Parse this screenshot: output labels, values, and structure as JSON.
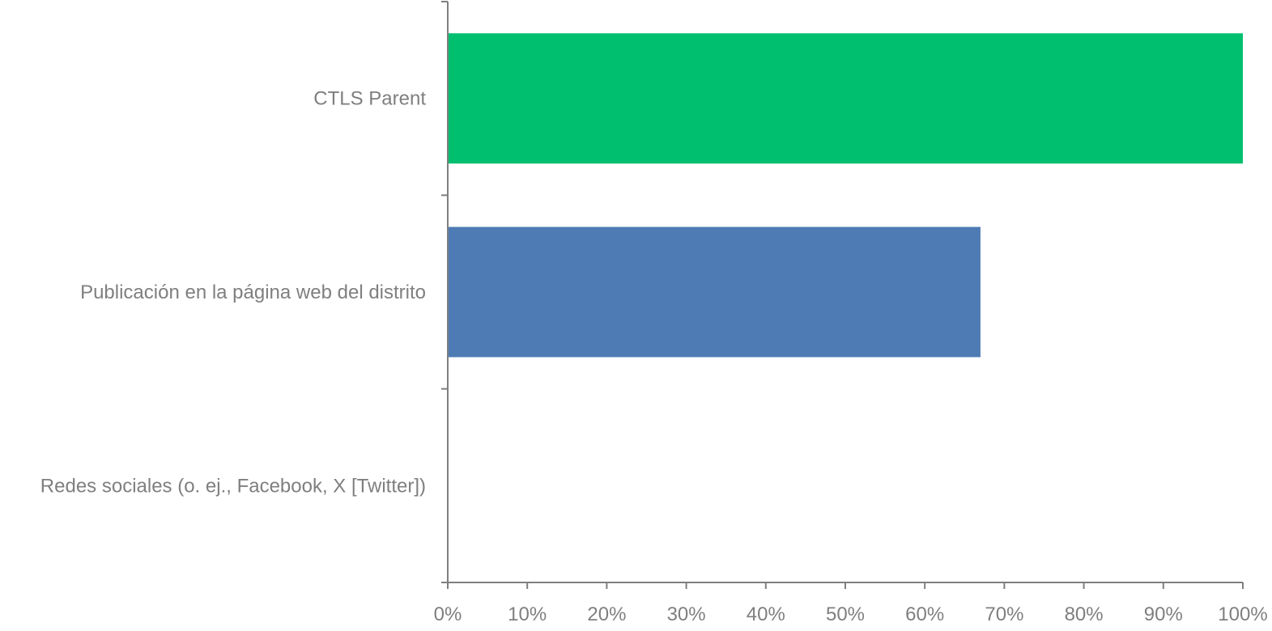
{
  "chart_data": {
    "type": "bar",
    "orientation": "horizontal",
    "categories": [
      "CTLS Parent",
      "Publicación en la página web del distrito",
      "Redes sociales (o. ej., Facebook, X [Twitter])"
    ],
    "values": [
      100,
      67,
      0
    ],
    "bar_colors": [
      "#00bf6f",
      "#4e7bb4",
      "#4e7bb4"
    ],
    "xlim": [
      0,
      100
    ],
    "x_ticks": [
      "0%",
      "10%",
      "20%",
      "30%",
      "40%",
      "50%",
      "60%",
      "70%",
      "80%",
      "90%",
      "100%"
    ],
    "title": "",
    "xlabel": "",
    "ylabel": "",
    "grid": false,
    "legend": "none",
    "axis_color": "#7f7f7f",
    "text_color": "#7f7f7f"
  }
}
